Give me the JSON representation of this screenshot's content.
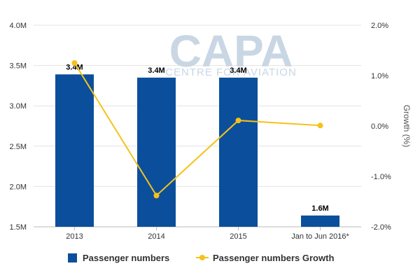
{
  "watermark": {
    "brand": "CAPA",
    "tagline": "CENTRE FOR AVIATION"
  },
  "chart_data": {
    "type": "bar",
    "categories": [
      "2013",
      "2014",
      "2015",
      "Jan to Jun 2016*"
    ],
    "series": [
      {
        "name": "Passenger numbers",
        "type": "bar",
        "axis": "left",
        "values": [
          3.39,
          3.35,
          3.35,
          1.64
        ],
        "labels": [
          "3.4M",
          "3.4M",
          "3.4M",
          "1.6M"
        ],
        "color": "#0b4f9c"
      },
      {
        "name": "Passenger numbers Growth",
        "type": "line",
        "axis": "right",
        "values": [
          1.25,
          -1.38,
          0.11,
          0.01
        ],
        "color": "#f5c21b"
      }
    ],
    "left_axis": {
      "min": 1.5,
      "max": 4.0,
      "ticks": [
        1.5,
        2.0,
        2.5,
        3.0,
        3.5,
        4.0
      ],
      "tick_labels": [
        "1.5M",
        "2.0M",
        "2.5M",
        "3.0M",
        "3.5M",
        "4.0M"
      ]
    },
    "right_axis": {
      "min": -2.0,
      "max": 2.0,
      "ticks": [
        -2.0,
        -1.0,
        0.0,
        1.0,
        2.0
      ],
      "tick_labels": [
        "-2.0%",
        "-1.0%",
        "0.0%",
        "1.0%",
        "2.0%"
      ],
      "title": "Growth (%)"
    },
    "grid": true,
    "legend_position": "bottom"
  }
}
